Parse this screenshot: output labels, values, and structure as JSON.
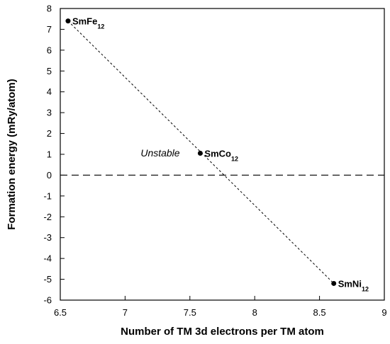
{
  "chart_data": {
    "type": "scatter",
    "xlabel": "Number of TM 3d electrons per TM atom",
    "ylabel": "Formation energy (mRy/atom)",
    "xlim": [
      6.5,
      9
    ],
    "ylim": [
      -6,
      8
    ],
    "xticks": [
      6.5,
      7,
      7.5,
      8,
      8.5,
      9
    ],
    "xtick_labels": [
      "6.5",
      "7",
      "7.5",
      "8",
      "8.5",
      "9"
    ],
    "yticks": [
      -6,
      -5,
      -4,
      -3,
      -2,
      -1,
      0,
      1,
      2,
      3,
      4,
      5,
      6,
      7,
      8
    ],
    "ytick_labels": [
      "-6",
      "-5",
      "-4",
      "-3",
      "-2",
      "-1",
      "0",
      "1",
      "2",
      "3",
      "4",
      "5",
      "6",
      "7",
      "8"
    ],
    "points": [
      {
        "label": "SmFe",
        "sub": "12",
        "x": 6.56,
        "y": 7.4
      },
      {
        "label": "SmCo",
        "sub": "12",
        "x": 7.58,
        "y": 1.05
      },
      {
        "label": "SmNi",
        "sub": "12",
        "x": 8.61,
        "y": -5.2
      }
    ],
    "reference_line": {
      "y": 0,
      "style": "dashed"
    },
    "fit_line": {
      "style": "dotted",
      "x": [
        6.56,
        8.61
      ],
      "y": [
        7.4,
        -5.2
      ]
    },
    "annotation": {
      "text": "Unstable",
      "x": 7.12,
      "y": 0.9
    }
  }
}
